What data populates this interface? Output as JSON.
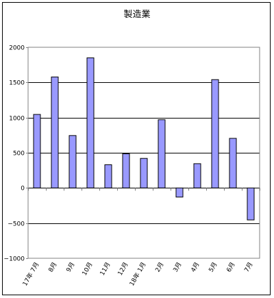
{
  "chart_data": {
    "type": "bar",
    "title": "製造業",
    "xlabel": "",
    "ylabel": "",
    "ylim": [
      -1000,
      2000
    ],
    "yticks": [
      -1000,
      -500,
      0,
      500,
      1000,
      1500,
      2000
    ],
    "ytick_labels": [
      "−1000",
      "−500",
      "0",
      "500",
      "1000",
      "1500",
      "2000"
    ],
    "grid": true,
    "legend": "none",
    "categories": [
      "17年 7月",
      "8月",
      "9月",
      "10月",
      "11月",
      "12月",
      "18年 1月",
      "2月",
      "3月",
      "4月",
      "5月",
      "6月",
      "7月"
    ],
    "values": [
      1045,
      1578,
      745,
      1850,
      330,
      485,
      420,
      970,
      -130,
      345,
      1540,
      705,
      -455
    ],
    "colors": {
      "bar_fill": "#9999ff",
      "bar_stroke": "#000000",
      "grid": "#000000",
      "axis": "#808080"
    }
  }
}
